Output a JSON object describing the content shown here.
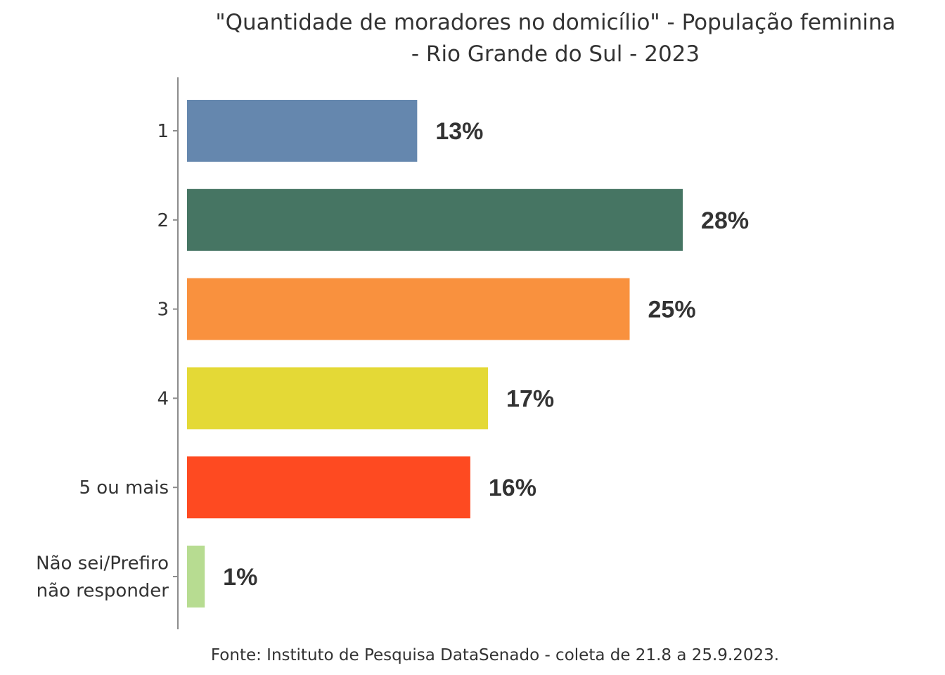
{
  "chart_data": {
    "type": "bar",
    "orientation": "horizontal",
    "title": "\"Quantidade de moradores no domicílio\" - População feminina - Rio Grande do Sul - 2023",
    "title_lines": [
      "\"Quantidade de moradores no domicílio\" - População feminina",
      "- Rio Grande do Sul - 2023"
    ],
    "categories": [
      "1",
      "2",
      "3",
      "4",
      "5 ou mais",
      "Não sei/Prefiro não responder"
    ],
    "category_label_lines": [
      [
        "1"
      ],
      [
        "2"
      ],
      [
        "3"
      ],
      [
        "4"
      ],
      [
        "5 ou mais"
      ],
      [
        "Não sei/Prefiro",
        "não responder"
      ]
    ],
    "values": [
      13,
      28,
      25,
      17,
      16,
      1
    ],
    "value_labels": [
      "13%",
      "28%",
      "25%",
      "17%",
      "16%",
      "1%"
    ],
    "colors": [
      "#6587AE",
      "#467563",
      "#F9913E",
      "#E4D936",
      "#FE4A21",
      "#B7DC91"
    ],
    "unit": "%",
    "xlabel": "",
    "ylabel": "",
    "xlim": [
      0,
      30
    ],
    "grid": false,
    "legend": "none",
    "source": "Fonte: Instituto de Pesquisa DataSenado - coleta de 21.8 a 25.9.2023."
  }
}
